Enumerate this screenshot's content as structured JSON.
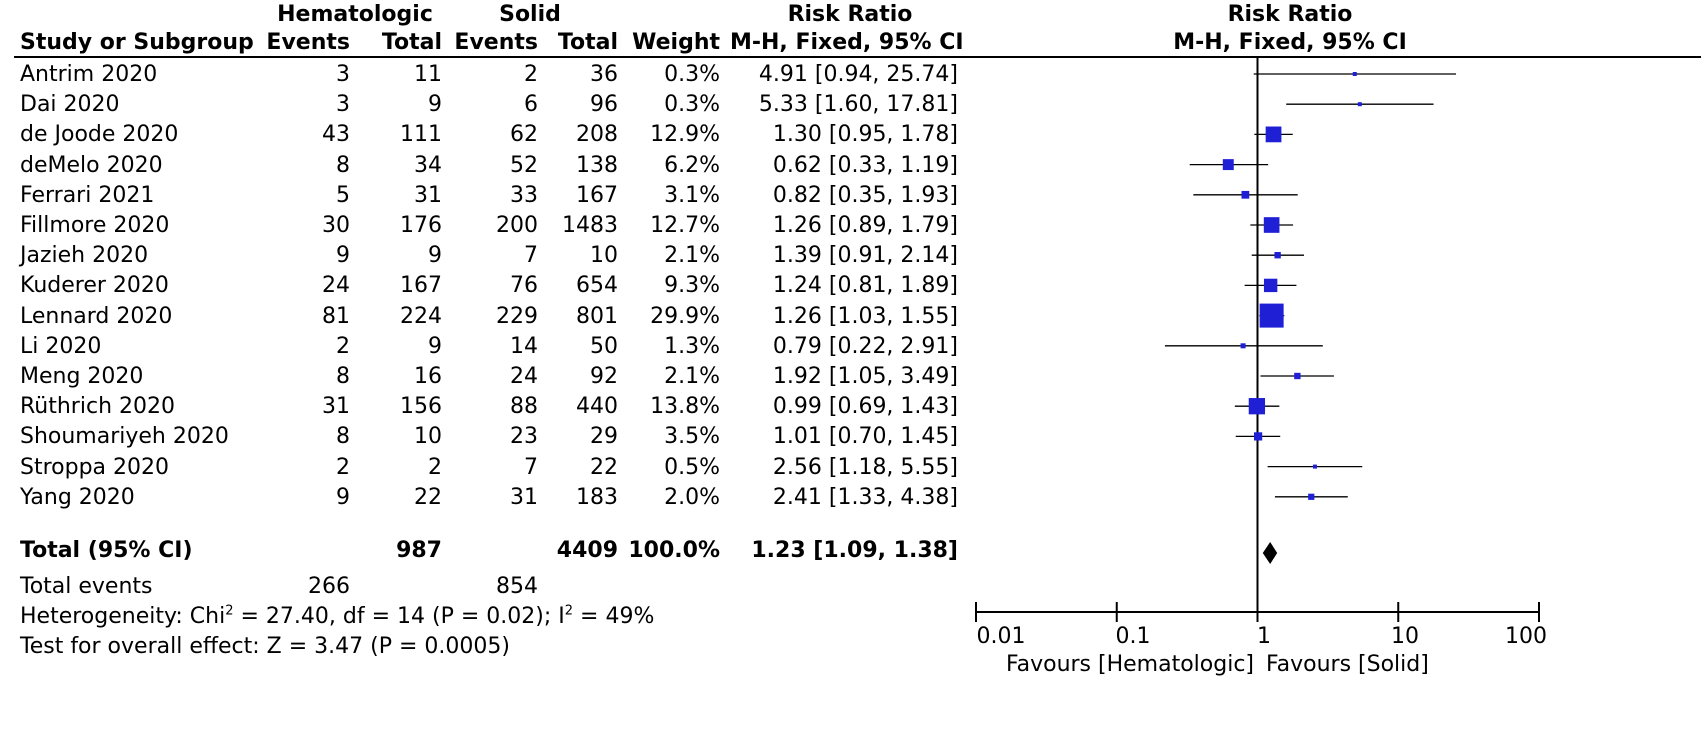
{
  "header": {
    "group1": "Hematologic",
    "group2": "Solid",
    "rr_top": "Risk Ratio",
    "study_col": "Study or Subgroup",
    "events1": "Events",
    "total1": "Total",
    "events2": "Events",
    "total2": "Total",
    "weight": "Weight",
    "rr_method": "M-H, Fixed, 95% CI",
    "plot_title": "Risk Ratio",
    "plot_method": "M-H, Fixed, 95% CI"
  },
  "studies": [
    {
      "name": "Antrim 2020",
      "e1": "3",
      "t1": "11",
      "e2": "2",
      "t2": "36",
      "weight": "0.3%",
      "ci": "4.91 [0.94, 25.74]"
    },
    {
      "name": "Dai 2020",
      "e1": "3",
      "t1": "9",
      "e2": "6",
      "t2": "96",
      "weight": "0.3%",
      "ci": "5.33 [1.60, 17.81]"
    },
    {
      "name": "de Joode 2020",
      "e1": "43",
      "t1": "111",
      "e2": "62",
      "t2": "208",
      "weight": "12.9%",
      "ci": "1.30 [0.95, 1.78]"
    },
    {
      "name": "deMelo 2020",
      "e1": "8",
      "t1": "34",
      "e2": "52",
      "t2": "138",
      "weight": "6.2%",
      "ci": "0.62 [0.33, 1.19]"
    },
    {
      "name": "Ferrari 2021",
      "e1": "5",
      "t1": "31",
      "e2": "33",
      "t2": "167",
      "weight": "3.1%",
      "ci": "0.82 [0.35, 1.93]"
    },
    {
      "name": "Fillmore 2020",
      "e1": "30",
      "t1": "176",
      "e2": "200",
      "t2": "1483",
      "weight": "12.7%",
      "ci": "1.26 [0.89, 1.79]"
    },
    {
      "name": "Jazieh 2020",
      "e1": "9",
      "t1": "9",
      "e2": "7",
      "t2": "10",
      "weight": "2.1%",
      "ci": "1.39 [0.91, 2.14]"
    },
    {
      "name": "Kuderer 2020",
      "e1": "24",
      "t1": "167",
      "e2": "76",
      "t2": "654",
      "weight": "9.3%",
      "ci": "1.24 [0.81, 1.89]"
    },
    {
      "name": "Lennard 2020",
      "e1": "81",
      "t1": "224",
      "e2": "229",
      "t2": "801",
      "weight": "29.9%",
      "ci": "1.26 [1.03, 1.55]"
    },
    {
      "name": "Li 2020",
      "e1": "2",
      "t1": "9",
      "e2": "14",
      "t2": "50",
      "weight": "1.3%",
      "ci": "0.79 [0.22, 2.91]"
    },
    {
      "name": "Meng 2020",
      "e1": "8",
      "t1": "16",
      "e2": "24",
      "t2": "92",
      "weight": "2.1%",
      "ci": "1.92 [1.05, 3.49]"
    },
    {
      "name": "Rüthrich 2020",
      "e1": "31",
      "t1": "156",
      "e2": "88",
      "t2": "440",
      "weight": "13.8%",
      "ci": "0.99 [0.69, 1.43]"
    },
    {
      "name": "Shoumariyeh 2020",
      "e1": "8",
      "t1": "10",
      "e2": "23",
      "t2": "29",
      "weight": "3.5%",
      "ci": "1.01 [0.70, 1.45]"
    },
    {
      "name": "Stroppa 2020",
      "e1": "2",
      "t1": "2",
      "e2": "7",
      "t2": "22",
      "weight": "0.5%",
      "ci": "2.56 [1.18, 5.55]"
    },
    {
      "name": "Yang 2020",
      "e1": "9",
      "t1": "22",
      "e2": "31",
      "t2": "183",
      "weight": "2.0%",
      "ci": "2.41 [1.33, 4.38]"
    }
  ],
  "total": {
    "label": "Total (95% CI)",
    "t1": "987",
    "t2": "4409",
    "weight": "100.0%",
    "ci": "1.23 [1.09, 1.38]"
  },
  "total_events": {
    "label": "Total events",
    "e1": "266",
    "e2": "854"
  },
  "heterogeneity": {
    "pre": "Heterogeneity: Chi",
    "sup1": "2",
    "mid": " = 27.40, df = 14 (P = 0.02); I",
    "sup2": "2",
    "post": " = 49%"
  },
  "overall_effect": "Test for overall effect: Z = 3.47 (P = 0.0005)",
  "axis": {
    "ticks": [
      "0.01",
      "0.1",
      "1",
      "10",
      "100"
    ],
    "favours_left": "Favours [Hematologic]",
    "favours_right": "Favours [Solid]"
  },
  "colors": {
    "square": "#1f1fd6",
    "line": "#000000",
    "diamond": "#000000"
  },
  "chart_data": {
    "type": "forest",
    "scale": "log",
    "xlim": [
      0.01,
      100
    ],
    "xticks": [
      0.01,
      0.1,
      1,
      10,
      100
    ],
    "null_line": 1,
    "series": [
      {
        "study": "Antrim 2020",
        "rr": 4.91,
        "lo": 0.94,
        "hi": 25.74,
        "weight": 0.3
      },
      {
        "study": "Dai 2020",
        "rr": 5.33,
        "lo": 1.6,
        "hi": 17.81,
        "weight": 0.3
      },
      {
        "study": "de Joode 2020",
        "rr": 1.3,
        "lo": 0.95,
        "hi": 1.78,
        "weight": 12.9
      },
      {
        "study": "deMelo 2020",
        "rr": 0.62,
        "lo": 0.33,
        "hi": 1.19,
        "weight": 6.2
      },
      {
        "study": "Ferrari 2021",
        "rr": 0.82,
        "lo": 0.35,
        "hi": 1.93,
        "weight": 3.1
      },
      {
        "study": "Fillmore 2020",
        "rr": 1.26,
        "lo": 0.89,
        "hi": 1.79,
        "weight": 12.7
      },
      {
        "study": "Jazieh 2020",
        "rr": 1.39,
        "lo": 0.91,
        "hi": 2.14,
        "weight": 2.1
      },
      {
        "study": "Kuderer 2020",
        "rr": 1.24,
        "lo": 0.81,
        "hi": 1.89,
        "weight": 9.3
      },
      {
        "study": "Lennard 2020",
        "rr": 1.26,
        "lo": 1.03,
        "hi": 1.55,
        "weight": 29.9
      },
      {
        "study": "Li 2020",
        "rr": 0.79,
        "lo": 0.22,
        "hi": 2.91,
        "weight": 1.3
      },
      {
        "study": "Meng 2020",
        "rr": 1.92,
        "lo": 1.05,
        "hi": 3.49,
        "weight": 2.1
      },
      {
        "study": "Rüthrich 2020",
        "rr": 0.99,
        "lo": 0.69,
        "hi": 1.43,
        "weight": 13.8
      },
      {
        "study": "Shoumariyeh 2020",
        "rr": 1.01,
        "lo": 0.7,
        "hi": 1.45,
        "weight": 3.5
      },
      {
        "study": "Stroppa 2020",
        "rr": 2.56,
        "lo": 1.18,
        "hi": 5.55,
        "weight": 0.5
      },
      {
        "study": "Yang 2020",
        "rr": 2.41,
        "lo": 1.33,
        "hi": 4.38,
        "weight": 2.0
      }
    ],
    "pooled": {
      "rr": 1.23,
      "lo": 1.09,
      "hi": 1.38
    }
  }
}
